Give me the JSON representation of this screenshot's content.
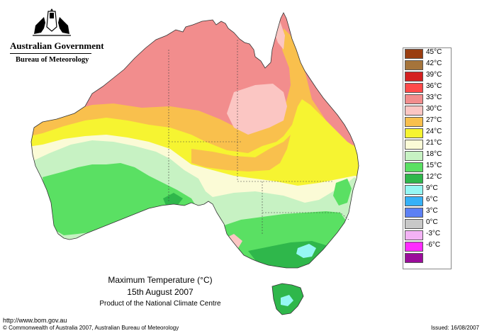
{
  "header": {
    "government": "Australian Government",
    "bureau": "Bureau of Meteorology"
  },
  "caption": {
    "title": "Maximum Temperature (°C)",
    "date": "15th August 2007",
    "product": "Product of the National Climate Centre"
  },
  "legend": [
    {
      "label": "45°C",
      "color": "#9a3d10"
    },
    {
      "label": "42°C",
      "color": "#a5743b"
    },
    {
      "label": "39°C",
      "color": "#d42020"
    },
    {
      "label": "36°C",
      "color": "#ff4a4a"
    },
    {
      "label": "33°C",
      "color": "#f28d8d"
    },
    {
      "label": "30°C",
      "color": "#fbc6c3"
    },
    {
      "label": "27°C",
      "color": "#f9c04d"
    },
    {
      "label": "24°C",
      "color": "#f6f431"
    },
    {
      "label": "21°C",
      "color": "#fbfbd6"
    },
    {
      "label": "18°C",
      "color": "#c7f2c3"
    },
    {
      "label": "15°C",
      "color": "#5ae063"
    },
    {
      "label": "12°C",
      "color": "#2fb74b"
    },
    {
      "label": "9°C",
      "color": "#95f7f3"
    },
    {
      "label": "6°C",
      "color": "#36b1f7"
    },
    {
      "label": "3°C",
      "color": "#5c80f4"
    },
    {
      "label": "0°C",
      "color": "#c8c8c8"
    },
    {
      "label": "-3°C",
      "color": "#f3b2f5"
    },
    {
      "label": "-6°C",
      "color": "#ff2bff"
    },
    {
      "label": "",
      "color": "#9b0c9b"
    }
  ],
  "footer": {
    "url": "http://www.bom.gov.au",
    "copyright": "© Commonwealth of Australia 2007, Australian Bureau of Meteorology",
    "issued": "Issued: 16/08/2007"
  }
}
